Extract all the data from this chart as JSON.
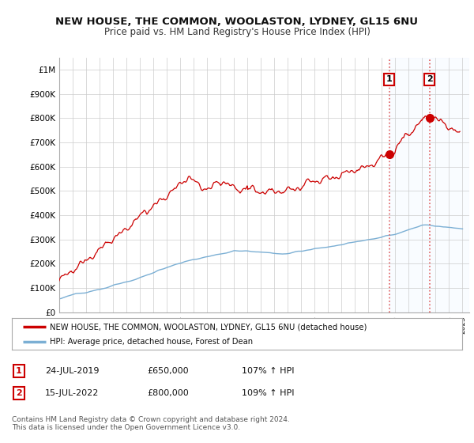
{
  "title": "NEW HOUSE, THE COMMON, WOOLASTON, LYDNEY, GL15 6NU",
  "subtitle": "Price paid vs. HM Land Registry's House Price Index (HPI)",
  "ylabel_ticks": [
    "£0",
    "£100K",
    "£200K",
    "£300K",
    "£400K",
    "£500K",
    "£600K",
    "£700K",
    "£800K",
    "£900K",
    "£1M"
  ],
  "ytick_values": [
    0,
    100000,
    200000,
    300000,
    400000,
    500000,
    600000,
    700000,
    800000,
    900000,
    1000000
  ],
  "ylim": [
    0,
    1050000
  ],
  "xlim_start": 1995.0,
  "xlim_end": 2025.5,
  "sale1_date": 2019.55,
  "sale1_price": 650000,
  "sale2_date": 2022.54,
  "sale2_price": 800000,
  "hpi_color": "#7bafd4",
  "price_color": "#cc0000",
  "vline_color": "#e06060",
  "shade_color": "#ddeeff",
  "legend_label1": "NEW HOUSE, THE COMMON, WOOLASTON, LYDNEY, GL15 6NU (detached house)",
  "legend_label2": "HPI: Average price, detached house, Forest of Dean",
  "table_row1": [
    "1",
    "24-JUL-2019",
    "£650,000",
    "107% ↑ HPI"
  ],
  "table_row2": [
    "2",
    "15-JUL-2022",
    "£800,000",
    "109% ↑ HPI"
  ],
  "footnote": "Contains HM Land Registry data © Crown copyright and database right 2024.\nThis data is licensed under the Open Government Licence v3.0.",
  "bg_color": "#ffffff",
  "grid_color": "#cccccc"
}
